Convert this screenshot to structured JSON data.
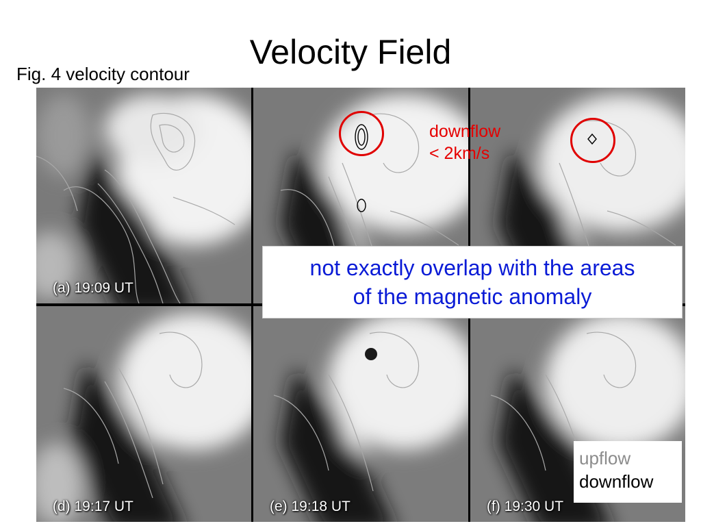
{
  "slide": {
    "title": "Velocity Field",
    "figure_caption": "Fig. 4 velocity contour"
  },
  "panels": [
    {
      "label": "(a) 19:09 UT"
    },
    {
      "label": ""
    },
    {
      "label": ""
    },
    {
      "label": "(d) 19:17 UT"
    },
    {
      "label": "(e) 19:18 UT"
    },
    {
      "label": "(f) 19:30 UT"
    }
  ],
  "annotations": {
    "downflow_line1": "downflow",
    "downflow_line2": "< 2km/s",
    "callout_line1": "not exactly overlap with the areas",
    "callout_line2": "of the magnetic anomaly"
  },
  "legend": {
    "upflow": "upflow",
    "downflow": "downflow"
  },
  "colors": {
    "annotation_red": "#e60000",
    "callout_blue": "#0a1bd6",
    "upflow_gray": "#8c8c8c"
  }
}
